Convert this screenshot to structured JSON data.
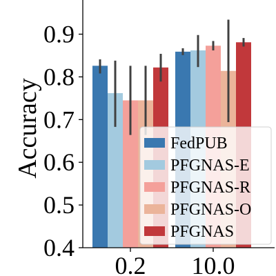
{
  "chart_data": {
    "type": "bar",
    "ylabel": "Accuracy",
    "xlabel": "",
    "categories": [
      "0.2",
      "10.0"
    ],
    "ylim": [
      0.4,
      0.98
    ],
    "yticks": [
      "0.4",
      "0.5",
      "0.6",
      "0.7",
      "0.8",
      "0.9"
    ],
    "grid": false,
    "legend_position": "lower-right",
    "series": [
      {
        "name": "FedPUB",
        "color": "#3a78b0",
        "values": [
          0.826,
          0.859
        ],
        "err_low": [
          0.808,
          0.851
        ],
        "err_high": [
          0.841,
          0.867
        ]
      },
      {
        "name": "PFGNAS-E",
        "color": "#a3cadf",
        "values": [
          0.762,
          0.862
        ],
        "err_low": [
          0.683,
          0.823
        ],
        "err_high": [
          0.838,
          0.898
        ]
      },
      {
        "name": "PFGNAS-R",
        "color": "#f4a09a",
        "values": [
          0.745,
          0.873
        ],
        "err_low": [
          0.664,
          0.862
        ],
        "err_high": [
          0.826,
          0.884
        ]
      },
      {
        "name": "PFGNAS-O",
        "color": "#ebb49a",
        "values": [
          0.745,
          0.814
        ],
        "err_low": [
          0.664,
          0.694
        ],
        "err_high": [
          0.826,
          0.934
        ]
      },
      {
        "name": "PFGNAS",
        "color": "#c1383b",
        "values": [
          0.822,
          0.881
        ],
        "err_low": [
          0.789,
          0.871
        ],
        "err_high": [
          0.854,
          0.891
        ]
      }
    ]
  }
}
